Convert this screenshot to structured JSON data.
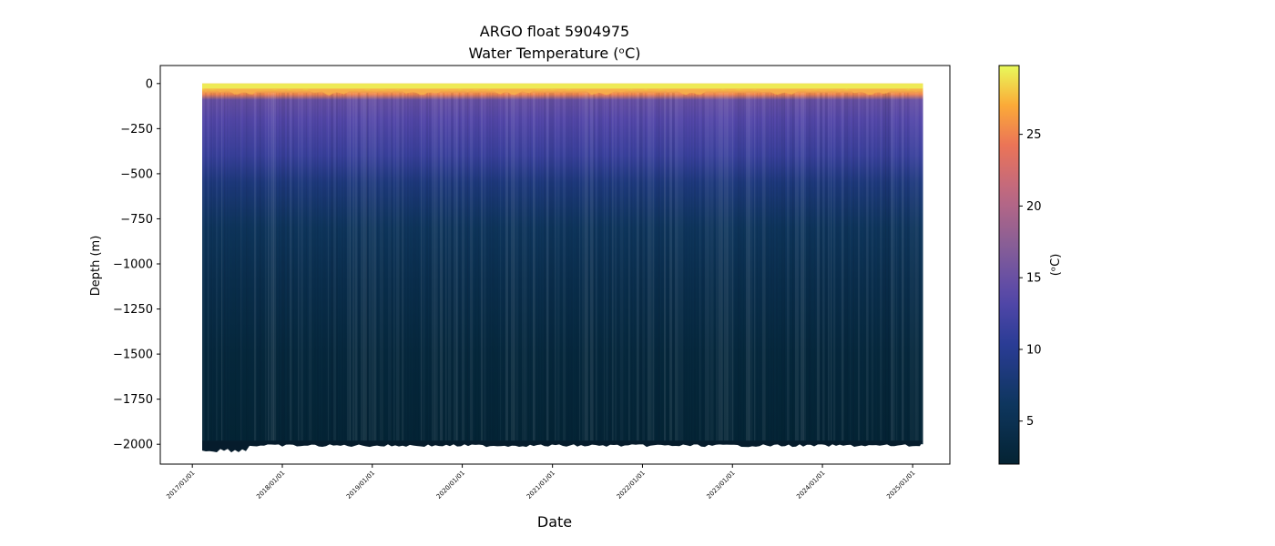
{
  "chart_data": {
    "type": "heatmap",
    "title": "ARGO float 5904975",
    "subtitle": "Water Temperature (ᵒC)",
    "xlabel": "Date",
    "ylabel": "Depth (m)",
    "x_tick_labels": [
      "2017/01/01",
      "2018/01/01",
      "2019/01/01",
      "2020/01/01",
      "2021/01/01",
      "2022/01/01",
      "2023/01/01",
      "2024/01/01",
      "2025/01/01"
    ],
    "x_tick_values": [
      "2017-01-01",
      "2018-01-01",
      "2019-01-01",
      "2020-01-01",
      "2021-01-01",
      "2022-01-01",
      "2023-01-01",
      "2024-01-01",
      "2025-01-01"
    ],
    "xlim": [
      "2016-08-24",
      "2025-06-01"
    ],
    "data_x_range": [
      "2017-02-10",
      "2025-02-12"
    ],
    "y_ticks": [
      0,
      -250,
      -500,
      -750,
      -1000,
      -1250,
      -1500,
      -1750,
      -2000
    ],
    "y_tick_labels": [
      "0",
      "−250",
      "−500",
      "−750",
      "−1000",
      "−1250",
      "−1500",
      "−1750",
      "−2000"
    ],
    "ylim": [
      -2110,
      100
    ],
    "depth_range": [
      0,
      -2000
    ],
    "temperature_profile": [
      {
        "depth": 0,
        "temp": 29
      },
      {
        "depth": -30,
        "temp": 28
      },
      {
        "depth": -60,
        "temp": 25
      },
      {
        "depth": -90,
        "temp": 15
      },
      {
        "depth": -200,
        "temp": 13.5
      },
      {
        "depth": -400,
        "temp": 11.5
      },
      {
        "depth": -550,
        "temp": 8.5
      },
      {
        "depth": -800,
        "temp": 6
      },
      {
        "depth": -1100,
        "temp": 4.5
      },
      {
        "depth": -1500,
        "temp": 3
      },
      {
        "depth": -2000,
        "temp": 2.2
      }
    ],
    "colorbar": {
      "label": "(ᵒC)",
      "colormap": "thermal",
      "range": [
        2,
        29.8
      ],
      "ticks": [
        5,
        10,
        15,
        20,
        25
      ],
      "tick_labels": [
        "5",
        "10",
        "15",
        "20",
        "25"
      ]
    },
    "grid": false
  }
}
